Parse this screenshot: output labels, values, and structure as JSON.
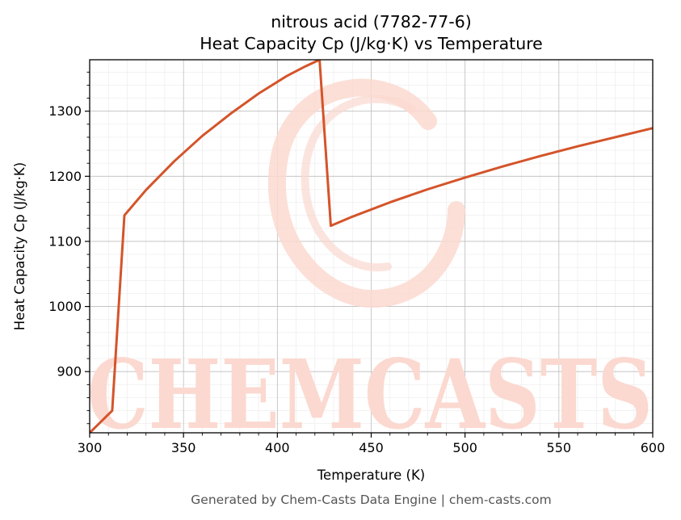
{
  "chart_data": {
    "type": "line",
    "title_line1": "nitrous acid (7782-77-6)",
    "title_line2": "Heat Capacity Cp (J/kg·K) vs Temperature",
    "xlabel": "Temperature (K)",
    "ylabel": "Heat Capacity Cp (J/kg·K)",
    "xlim": [
      300,
      600
    ],
    "ylim": [
      806,
      1379
    ],
    "xticks": [
      300,
      350,
      400,
      450,
      500,
      550,
      600
    ],
    "yticks": [
      900,
      1000,
      1100,
      1200,
      1300
    ],
    "grid": true,
    "line_color": "#d4542a",
    "series": [
      {
        "x": [
          300,
          312,
          318.5,
          330,
          345,
          360,
          375,
          390,
          405,
          415,
          422.5,
          428.5,
          440,
          460,
          480,
          500,
          520,
          540,
          560,
          580,
          600
        ],
        "y": [
          806,
          840,
          1140,
          1179,
          1223,
          1262,
          1296,
          1327,
          1354,
          1369,
          1379,
          1124,
          1138,
          1160,
          1180,
          1198,
          1215,
          1231,
          1246,
          1260,
          1274
        ]
      }
    ]
  },
  "watermark": {
    "text": "CHEMCASTS",
    "color": "#fbd9d0"
  },
  "footer": "Generated by Chem-Casts Data Engine | chem-casts.com"
}
